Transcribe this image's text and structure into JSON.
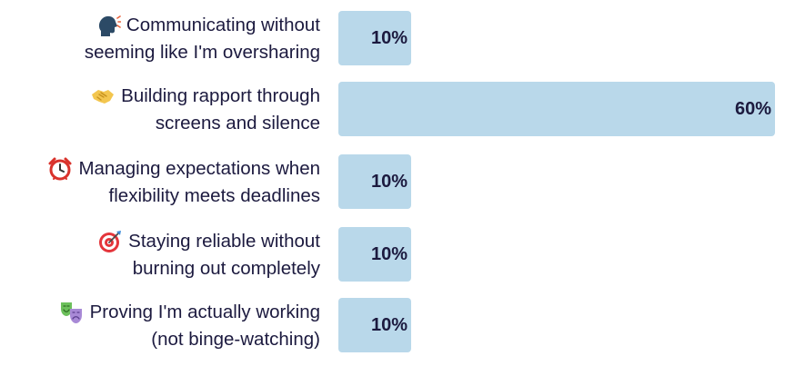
{
  "chart_data": {
    "type": "bar",
    "orientation": "horizontal",
    "categories": [
      "Communicating without seeming like I'm oversharing",
      "Building rapport through screens and silence",
      "Managing expectations when flexibility meets deadlines",
      "Staying reliable without burning out completely",
      "Proving I'm actually working (not binge-watching)"
    ],
    "label_lines": [
      [
        "Communicating without",
        "seeming like I'm oversharing"
      ],
      [
        "Building rapport through",
        "screens and silence"
      ],
      [
        "Managing expectations when",
        "flexibility meets deadlines"
      ],
      [
        "Staying reliable without",
        "burning out completely"
      ],
      [
        "Proving I'm actually working",
        "(not binge-watching)"
      ]
    ],
    "icons": [
      "speaking-head-icon",
      "handshake-icon",
      "alarm-clock-icon",
      "target-icon",
      "theater-masks-icon"
    ],
    "values": [
      10,
      60,
      10,
      10,
      10
    ],
    "value_labels": [
      "10%",
      "60%",
      "10%",
      "10%",
      "10%"
    ],
    "xlim": [
      0,
      60
    ],
    "bar_color": "#b9d8ea",
    "text_color": "#1c1a3f",
    "grid": false,
    "legend": "none"
  }
}
